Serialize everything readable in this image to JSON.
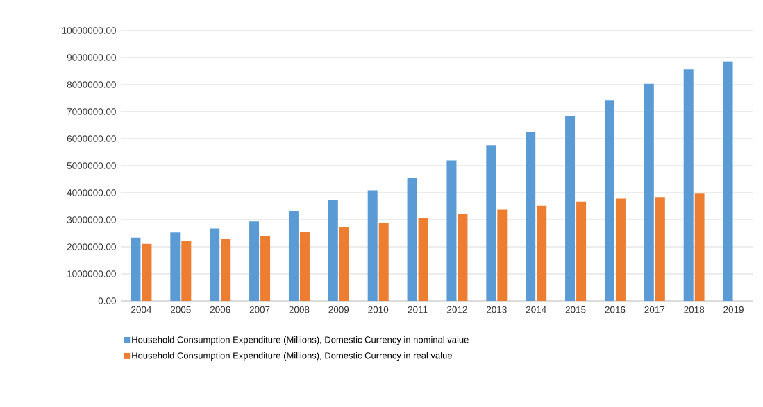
{
  "chart_data": {
    "type": "bar",
    "categories": [
      "2004",
      "2005",
      "2006",
      "2007",
      "2008",
      "2009",
      "2010",
      "2011",
      "2012",
      "2013",
      "2014",
      "2015",
      "2016",
      "2017",
      "2018",
      "2019"
    ],
    "series": [
      {
        "name": "Household Consumption Expenditure (Millions), Domestic Currency in nominal value",
        "color": "#5b9bd5",
        "values": [
          2340000,
          2530000,
          2680000,
          2940000,
          3320000,
          3730000,
          4090000,
          4540000,
          5190000,
          5760000,
          6250000,
          6840000,
          7430000,
          8030000,
          8560000,
          8860000
        ]
      },
      {
        "name": "Household Consumption Expenditure (Millions), Domestic Currency in real value",
        "color": "#ed7d31",
        "values": [
          2110000,
          2210000,
          2280000,
          2400000,
          2560000,
          2730000,
          2870000,
          3060000,
          3210000,
          3370000,
          3520000,
          3670000,
          3780000,
          3840000,
          3970000,
          null
        ]
      }
    ],
    "ylim": [
      0,
      10000000
    ],
    "yticks": [
      {
        "value": 0,
        "label": "0.00"
      },
      {
        "value": 1000000,
        "label": "1000000.00"
      },
      {
        "value": 2000000,
        "label": "2000000.00"
      },
      {
        "value": 3000000,
        "label": "3000000.00"
      },
      {
        "value": 4000000,
        "label": "4000000.00"
      },
      {
        "value": 5000000,
        "label": "5000000.00"
      },
      {
        "value": 6000000,
        "label": "6000000.00"
      },
      {
        "value": 7000000,
        "label": "7000000.00"
      },
      {
        "value": 8000000,
        "label": "8000000.00"
      },
      {
        "value": 9000000,
        "label": "9000000.00"
      },
      {
        "value": 10000000,
        "label": "10000000.00"
      }
    ],
    "grid": "y",
    "legend": "bottom"
  }
}
